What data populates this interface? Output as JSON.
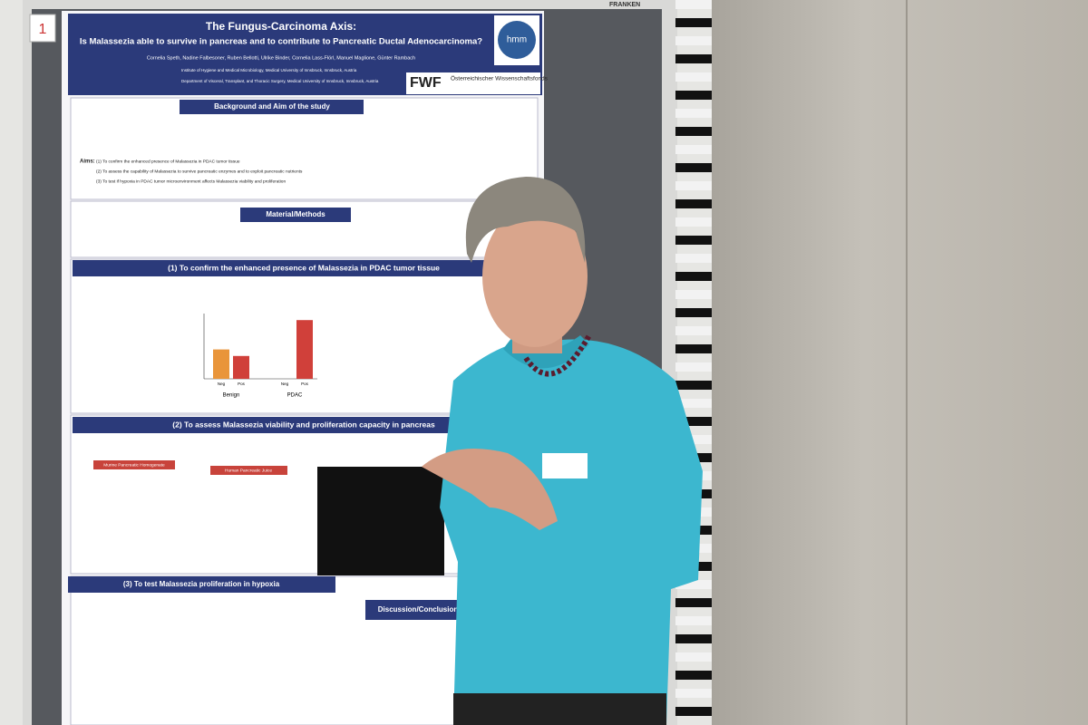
{
  "board": {
    "label": "FRANKEN",
    "number": "1"
  },
  "poster": {
    "title": "The Fungus-Carcinoma Axis:",
    "subtitle": "Is Malassezia able to survive in pancreas and to contribute to Pancreatic Ductal Adenocarcinoma?",
    "authors": "Cornelia Speth, Nadine Falbesoner, Ruben Bellotti, Ulrike Binder, Cornelia Lass-Flörl, Manuel Maglione, Günter Rambach",
    "affiliations": [
      "Institute of Hygiene and Medical Microbiology, Medical University of Innsbruck, Innsbruck, Austria",
      "Department of Visceral, Transplant, and Thoracic Surgery, Medical University of Innsbruck, Innsbruck, Austria"
    ],
    "logos": [
      "hmm",
      "FWF",
      "Österreichischer Wissenschaftsfonds"
    ],
    "sections": [
      "Background and Aim of the study",
      "Material/Methods",
      "(1) To confirm the enhanced presence of Malassezia in PDAC tumor tissue",
      "(2) To assess Malassezia viability and proliferation capacity in pancreas",
      "(3) To test Malassezia proliferation in hypoxia",
      "Discussion/Conclusion"
    ],
    "aims_label": "Aims:",
    "aims": [
      "(1) To confirm the enhanced presence of Malassezia in PDAC tumor tissue",
      "(2) To assess the capability of Malassezia to survive pancreatic enzymes and to exploit pancreatic nutrients",
      "(3) To test if hypoxia in PDAC tumor microenvironment affects Malassezia viability and proliferation"
    ],
    "panel_titles": [
      "Murine Pancreatic Homogenate",
      "Human Pancreatic Juice"
    ],
    "figure": {
      "categories": [
        "Neg",
        "Pos",
        "Neg",
        "Pos"
      ],
      "groups": [
        "Benign",
        "PDAC"
      ],
      "values": [
        4.5,
        3.5,
        0,
        9
      ],
      "ylim": [
        0,
        10
      ],
      "colors": [
        "#e9953a",
        "#d0403a",
        "#e9953a",
        "#d0403a"
      ]
    }
  }
}
